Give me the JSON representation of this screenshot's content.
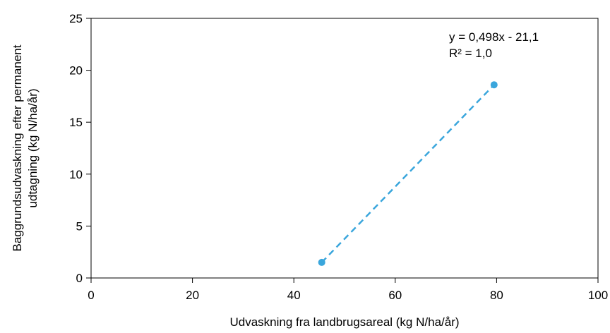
{
  "chart_data": {
    "type": "scatter",
    "title": "",
    "xlabel": "Udvaskning fra landbrugsareal (kg N/ha/år)",
    "ylabel_lines": [
      "Baggrundsudvaskning efter permanent",
      "udtagning (kg N/ha/år)"
    ],
    "xlim": [
      0,
      100
    ],
    "ylim": [
      0,
      25
    ],
    "xticks": [
      0,
      20,
      40,
      60,
      80,
      100
    ],
    "yticks": [
      0,
      5,
      10,
      15,
      20,
      25
    ],
    "grid": false,
    "series": [
      {
        "points": [
          {
            "x": 45.5,
            "y": 1.5
          },
          {
            "x": 79.5,
            "y": 18.6
          }
        ],
        "color": "#3aa6dc",
        "trendline": {
          "style": "dashed",
          "color": "#3aa6dc"
        }
      }
    ],
    "annotations": [
      "y = 0,498x - 21,1",
      "R² = 1,0"
    ]
  }
}
